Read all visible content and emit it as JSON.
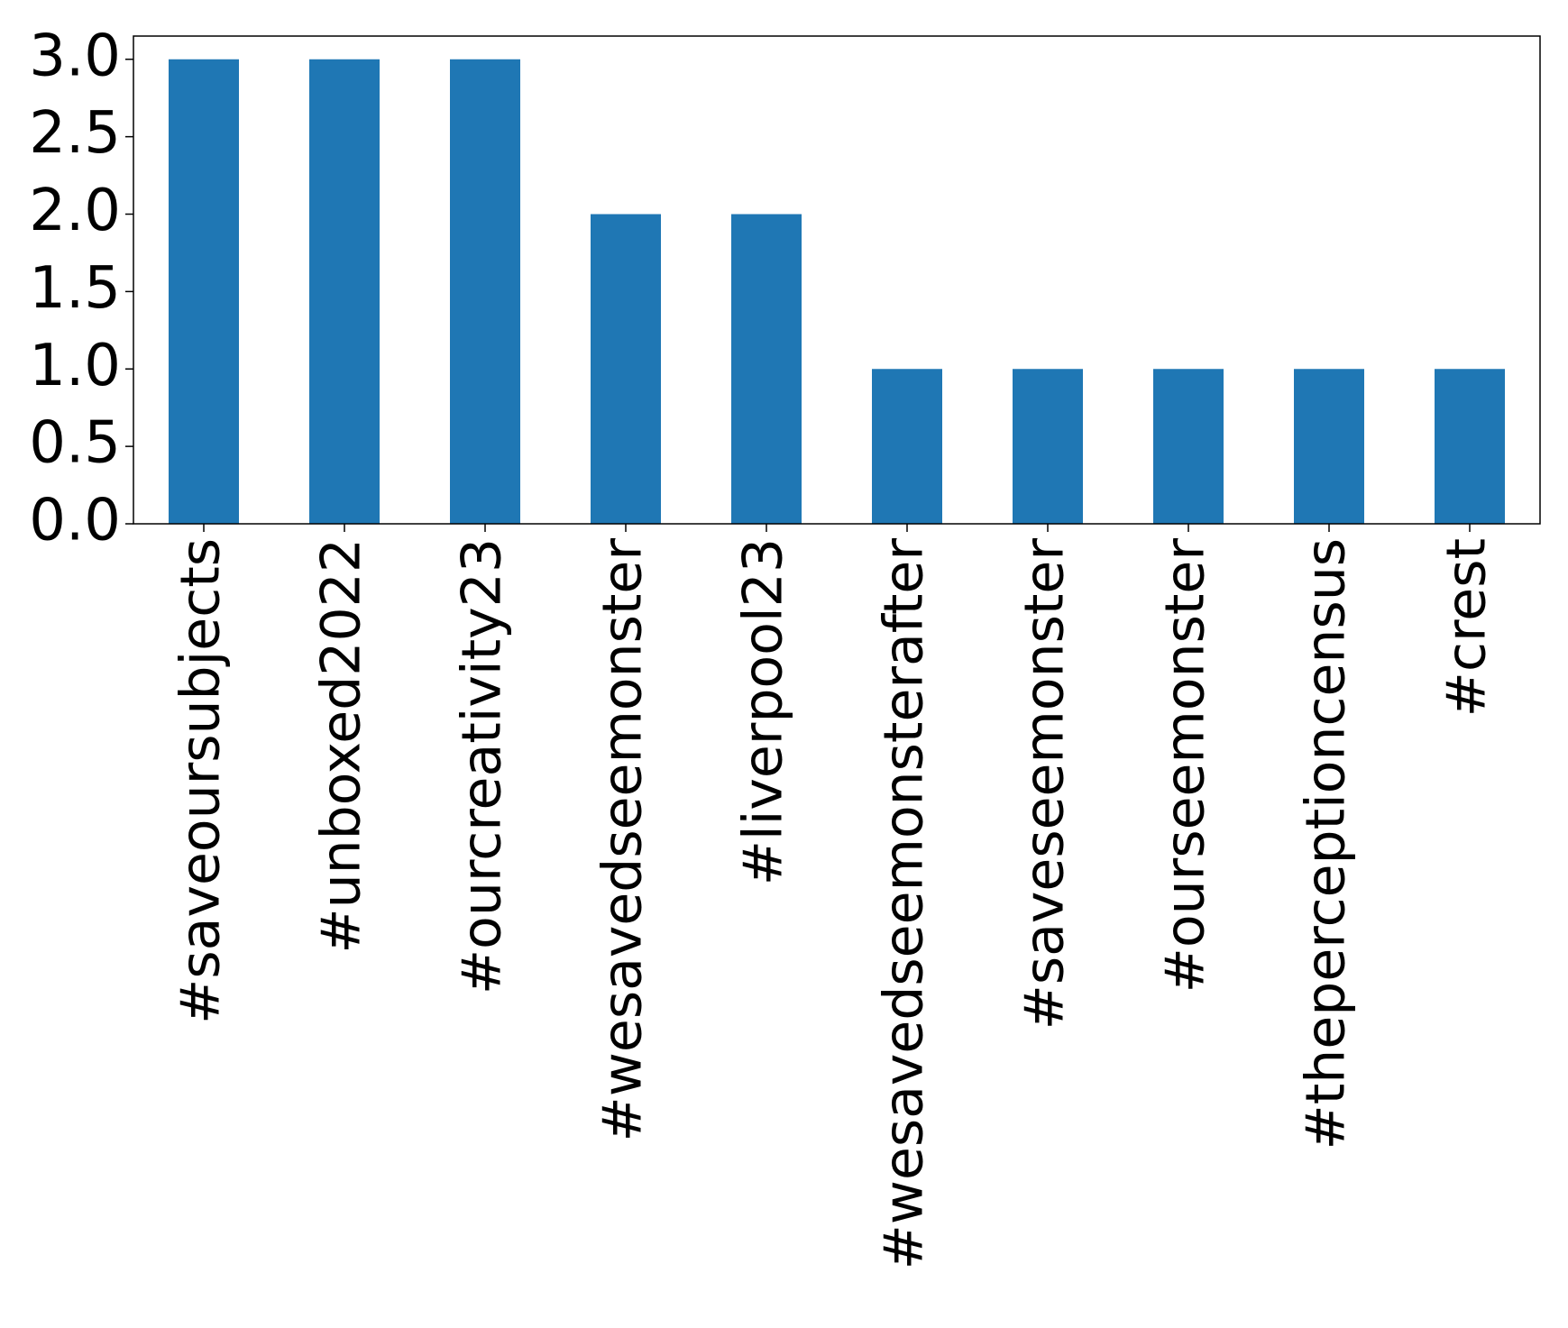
{
  "chart_data": {
    "type": "bar",
    "categories": [
      "#saveoursubjects",
      "#unboxed2022",
      "#ourcreativity23",
      "#wesavedseemonster",
      "#liverpool23",
      "#wesavedseemonsterafter",
      "#saveseemonster",
      "#ourseemonster",
      "#theperceptioncensus",
      "#crest"
    ],
    "values": [
      3,
      3,
      3,
      2,
      2,
      1,
      1,
      1,
      1,
      1
    ],
    "color": "#1f77b4",
    "ylim": [
      0,
      3.15
    ],
    "yticks": [
      {
        "value": 0,
        "label": "0.0"
      },
      0.5,
      {
        "value": 1,
        "label": "1.0"
      },
      1.5,
      {
        "value": 2,
        "label": "2.0"
      },
      2.5,
      {
        "value": 3,
        "label": "3.0"
      }
    ],
    "grid": false
  }
}
